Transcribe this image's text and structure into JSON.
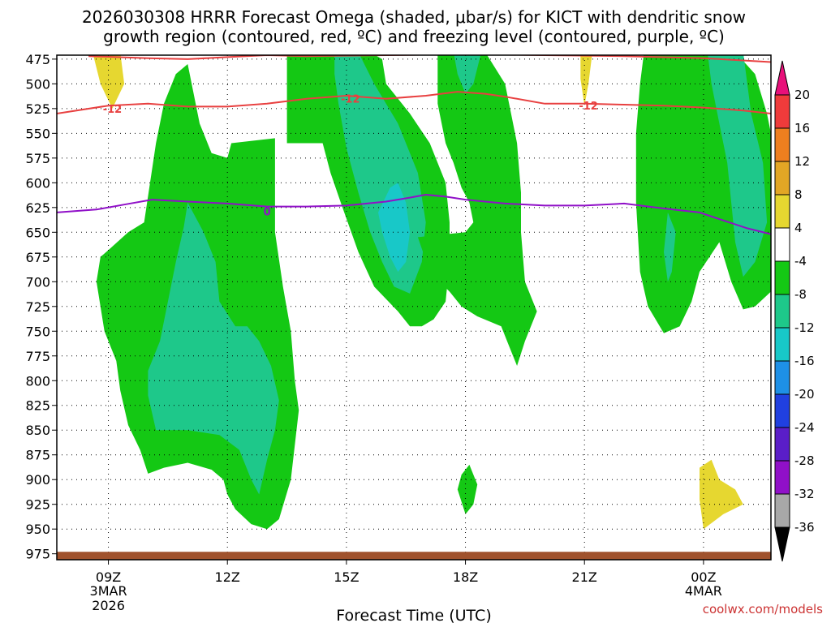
{
  "chart_data": {
    "type": "heatmap",
    "title_line1": "2026030308 HRRR Forecast Omega (shaded, μbar/s) for KICT with dendritic snow",
    "title_line2": "growth region (contoured, red, ºC) and freezing level (contoured, purple, ºC)",
    "xlabel": "Forecast Time (UTC)",
    "credit": "coolwx.com/models",
    "x_range_hours": [
      7.7,
      25.7
    ],
    "y_range_hpa": [
      471,
      981
    ],
    "y_axis_inverted": true,
    "yticks": [
      475,
      500,
      525,
      550,
      575,
      600,
      625,
      650,
      675,
      700,
      725,
      750,
      775,
      800,
      825,
      850,
      875,
      900,
      925,
      950,
      975
    ],
    "xticks": [
      {
        "hour": 9,
        "label": "09Z",
        "sub1": "3MAR",
        "sub2": "2026"
      },
      {
        "hour": 12,
        "label": "12Z",
        "sub1": "",
        "sub2": ""
      },
      {
        "hour": 15,
        "label": "15Z",
        "sub1": "",
        "sub2": ""
      },
      {
        "hour": 18,
        "label": "18Z",
        "sub1": "",
        "sub2": ""
      },
      {
        "hour": 21,
        "label": "21Z",
        "sub1": "",
        "sub2": ""
      },
      {
        "hour": 24,
        "label": "00Z",
        "sub1": "4MAR",
        "sub2": ""
      }
    ],
    "colorbar": {
      "levels": [
        20,
        16,
        12,
        8,
        4,
        -4,
        -8,
        -12,
        -16,
        -20,
        -24,
        -28,
        -32,
        -36
      ],
      "colors": [
        "#ef3b3b",
        "#ee7f1f",
        "#e2a625",
        "#e6d730",
        "#ffffff",
        "#14c814",
        "#1ec88a",
        "#18c8c8",
        "#1e90e6",
        "#2040e0",
        "#5a1ec8",
        "#9010c8",
        "#a8a8a8"
      ],
      "top_extend_color": "#e8107a",
      "bottom_extend_color": "#000000"
    },
    "shaded_regions": [
      {
        "class": "<-4",
        "color": "#14c814",
        "points": [
          [
            9.9,
            640
          ],
          [
            10.2,
            560
          ],
          [
            10.4,
            520
          ],
          [
            10.7,
            490
          ],
          [
            11.0,
            480
          ],
          [
            11.3,
            540
          ],
          [
            11.6,
            570
          ],
          [
            12.0,
            575
          ],
          [
            12.1,
            560
          ],
          [
            13.2,
            555
          ],
          [
            13.2,
            625
          ],
          [
            13.2,
            650
          ],
          [
            13.4,
            705
          ],
          [
            13.6,
            750
          ],
          [
            13.7,
            800
          ],
          [
            13.8,
            830
          ],
          [
            13.6,
            900
          ],
          [
            13.3,
            940
          ],
          [
            13.0,
            950
          ],
          [
            12.6,
            945
          ],
          [
            12.2,
            930
          ],
          [
            12.0,
            915
          ],
          [
            11.9,
            900
          ],
          [
            11.6,
            890
          ],
          [
            11.0,
            883
          ],
          [
            10.4,
            888
          ],
          [
            10.0,
            894
          ],
          [
            9.8,
            870
          ],
          [
            9.5,
            845
          ],
          [
            9.3,
            810
          ],
          [
            9.2,
            780
          ],
          [
            8.9,
            750
          ],
          [
            8.7,
            700
          ],
          [
            8.8,
            675
          ],
          [
            9.0,
            668
          ],
          [
            9.5,
            650
          ]
        ]
      },
      {
        "class": "<-8",
        "color": "#1ec88a",
        "points": [
          [
            11.0,
            620
          ],
          [
            11.4,
            650
          ],
          [
            11.7,
            680
          ],
          [
            11.8,
            720
          ],
          [
            12.2,
            745
          ],
          [
            12.5,
            745
          ],
          [
            12.8,
            760
          ],
          [
            13.1,
            785
          ],
          [
            13.3,
            820
          ],
          [
            13.2,
            850
          ],
          [
            13.0,
            880
          ],
          [
            12.8,
            915
          ],
          [
            12.6,
            900
          ],
          [
            12.3,
            870
          ],
          [
            11.8,
            855
          ],
          [
            11.0,
            850
          ],
          [
            10.2,
            850
          ],
          [
            10.0,
            815
          ],
          [
            10.0,
            790
          ],
          [
            10.3,
            760
          ],
          [
            10.5,
            720
          ],
          [
            10.7,
            680
          ],
          [
            10.9,
            645
          ]
        ]
      },
      {
        "class": "<-4",
        "color": "#14c814",
        "points": [
          [
            13.5,
            468
          ],
          [
            15.1,
            468
          ],
          [
            15.6,
            468
          ],
          [
            15.9,
            475
          ],
          [
            16.0,
            500
          ],
          [
            16.6,
            530
          ],
          [
            17.1,
            560
          ],
          [
            17.5,
            600
          ],
          [
            17.6,
            640
          ],
          [
            17.6,
            680
          ],
          [
            17.5,
            720
          ],
          [
            17.2,
            738
          ],
          [
            16.9,
            745
          ],
          [
            16.6,
            745
          ],
          [
            16.3,
            730
          ],
          [
            15.7,
            705
          ],
          [
            15.3,
            670
          ],
          [
            14.9,
            625
          ],
          [
            14.6,
            590
          ],
          [
            14.4,
            560
          ],
          [
            13.5,
            560
          ],
          [
            13.5,
            500
          ]
        ]
      },
      {
        "class": "<-8",
        "color": "#1ec88a",
        "points": [
          [
            14.7,
            468
          ],
          [
            15.3,
            468
          ],
          [
            15.7,
            500
          ],
          [
            16.3,
            540
          ],
          [
            16.8,
            590
          ],
          [
            17.0,
            640
          ],
          [
            16.9,
            680
          ],
          [
            16.6,
            712
          ],
          [
            16.2,
            705
          ],
          [
            15.9,
            680
          ],
          [
            15.6,
            650
          ],
          [
            15.3,
            610
          ],
          [
            15.0,
            565
          ],
          [
            14.8,
            520
          ],
          [
            14.7,
            490
          ]
        ]
      },
      {
        "class": "<-12",
        "color": "#18c8c8",
        "points": [
          [
            16.1,
            605
          ],
          [
            16.3,
            600
          ],
          [
            16.5,
            620
          ],
          [
            16.6,
            650
          ],
          [
            16.5,
            680
          ],
          [
            16.3,
            690
          ],
          [
            16.1,
            675
          ],
          [
            15.9,
            650
          ],
          [
            15.8,
            630
          ]
        ]
      },
      {
        "class": "<-4",
        "color": "#14c814",
        "points": [
          [
            17.3,
            468
          ],
          [
            18.5,
            468
          ],
          [
            19.0,
            500
          ],
          [
            19.3,
            560
          ],
          [
            19.4,
            610
          ],
          [
            19.4,
            650
          ],
          [
            19.5,
            700
          ],
          [
            19.8,
            730
          ],
          [
            19.5,
            760
          ],
          [
            19.3,
            785
          ],
          [
            19.1,
            765
          ],
          [
            18.9,
            745
          ],
          [
            18.3,
            735
          ],
          [
            17.9,
            725
          ],
          [
            17.6,
            710
          ],
          [
            17.1,
            690
          ],
          [
            16.8,
            655
          ],
          [
            18.0,
            650
          ],
          [
            18.2,
            640
          ],
          [
            18.1,
            620
          ],
          [
            17.9,
            605
          ],
          [
            17.7,
            580
          ],
          [
            17.5,
            560
          ],
          [
            17.3,
            520
          ],
          [
            17.3,
            490
          ]
        ]
      },
      {
        "class": "<-8",
        "color": "#1ec88a",
        "points": [
          [
            17.7,
            468
          ],
          [
            18.4,
            468
          ],
          [
            18.2,
            500
          ],
          [
            18.0,
            510
          ],
          [
            17.8,
            490
          ]
        ]
      },
      {
        "class": "<-4",
        "color": "#14c814",
        "points": [
          [
            17.9,
            895
          ],
          [
            18.1,
            885
          ],
          [
            18.3,
            905
          ],
          [
            18.2,
            925
          ],
          [
            18.0,
            935
          ],
          [
            17.8,
            910
          ]
        ]
      },
      {
        "class": "<-4",
        "color": "#14c814",
        "points": [
          [
            22.5,
            468
          ],
          [
            24.5,
            468
          ],
          [
            24.8,
            468
          ],
          [
            25.3,
            490
          ],
          [
            25.6,
            530
          ],
          [
            25.8,
            570
          ],
          [
            25.9,
            620
          ],
          [
            25.9,
            680
          ],
          [
            25.7,
            710
          ],
          [
            25.3,
            725
          ],
          [
            25.0,
            728
          ],
          [
            24.7,
            700
          ],
          [
            24.4,
            660
          ],
          [
            23.9,
            690
          ],
          [
            23.7,
            720
          ],
          [
            23.4,
            745
          ],
          [
            23.0,
            752
          ],
          [
            22.6,
            725
          ],
          [
            22.4,
            690
          ],
          [
            22.3,
            620
          ],
          [
            22.3,
            550
          ],
          [
            22.4,
            500
          ]
        ]
      },
      {
        "class": "<-8",
        "color": "#1ec88a",
        "points": [
          [
            24.1,
            468
          ],
          [
            25.0,
            468
          ],
          [
            25.2,
            530
          ],
          [
            25.5,
            580
          ],
          [
            25.6,
            640
          ],
          [
            25.3,
            680
          ],
          [
            25.0,
            695
          ],
          [
            24.8,
            660
          ],
          [
            24.7,
            620
          ],
          [
            24.6,
            580
          ],
          [
            24.4,
            540
          ],
          [
            24.2,
            500
          ]
        ]
      },
      {
        "class": "<-8",
        "color": "#1ec88a",
        "points": [
          [
            23.1,
            630
          ],
          [
            23.3,
            650
          ],
          [
            23.2,
            690
          ],
          [
            23.1,
            700
          ],
          [
            23.0,
            670
          ]
        ]
      },
      {
        "class": ">4",
        "color": "#e6d730",
        "points": [
          [
            8.6,
            468
          ],
          [
            9.3,
            468
          ],
          [
            9.4,
            500
          ],
          [
            9.1,
            525
          ],
          [
            8.8,
            500
          ]
        ]
      },
      {
        "class": ">4",
        "color": "#e6d730",
        "points": [
          [
            20.9,
            468
          ],
          [
            21.2,
            468
          ],
          [
            21.1,
            500
          ],
          [
            21.0,
            522
          ],
          [
            20.9,
            495
          ]
        ]
      },
      {
        "class": ">4",
        "color": "#e6d730",
        "points": [
          [
            23.9,
            888
          ],
          [
            24.2,
            880
          ],
          [
            24.4,
            900
          ],
          [
            24.8,
            910
          ],
          [
            25.0,
            925
          ],
          [
            24.5,
            935
          ],
          [
            24.0,
            950
          ],
          [
            23.9,
            920
          ]
        ]
      }
    ],
    "contours": [
      {
        "name": "dendritic -12C (lower)",
        "color": "#e84040",
        "label": "-12",
        "label_positions": [
          [
            9.1,
            525
          ],
          [
            15.1,
            515
          ],
          [
            21.1,
            522
          ]
        ],
        "points": [
          [
            7.7,
            530
          ],
          [
            9.0,
            522
          ],
          [
            10.0,
            520
          ],
          [
            11.0,
            523
          ],
          [
            12.0,
            523
          ],
          [
            13.0,
            520
          ],
          [
            14.0,
            515
          ],
          [
            15.0,
            512
          ],
          [
            16.0,
            515
          ],
          [
            17.0,
            512
          ],
          [
            17.8,
            508
          ],
          [
            18.5,
            510
          ],
          [
            19.0,
            513
          ],
          [
            20.0,
            520
          ],
          [
            21.0,
            520
          ],
          [
            22.0,
            521
          ],
          [
            23.0,
            522
          ],
          [
            24.0,
            524
          ],
          [
            25.0,
            527
          ],
          [
            25.7,
            530
          ]
        ]
      },
      {
        "name": "dendritic -12C (upper)",
        "color": "#e84040",
        "label": "",
        "label_positions": [],
        "points": [
          [
            8.5,
            472
          ],
          [
            10.0,
            474
          ],
          [
            11.0,
            475
          ],
          [
            12.0,
            473
          ],
          [
            13.0,
            471
          ],
          [
            14.0,
            472
          ],
          [
            16.0,
            471
          ],
          [
            18.0,
            470
          ],
          [
            20.0,
            471
          ],
          [
            22.0,
            472
          ],
          [
            24.0,
            474
          ],
          [
            25.7,
            478
          ]
        ]
      },
      {
        "name": "freezing level 0C",
        "color": "#9010c8",
        "label": "0",
        "label_positions": [
          [
            13.0,
            629
          ]
        ],
        "points": [
          [
            7.7,
            630
          ],
          [
            8.7,
            627
          ],
          [
            9.4,
            622
          ],
          [
            10.1,
            617
          ],
          [
            11.0,
            619
          ],
          [
            12.0,
            621
          ],
          [
            13.0,
            624
          ],
          [
            14.0,
            624
          ],
          [
            15.0,
            623
          ],
          [
            16.0,
            619
          ],
          [
            16.6,
            615
          ],
          [
            17.0,
            612
          ],
          [
            17.5,
            614
          ],
          [
            18.0,
            617
          ],
          [
            19.0,
            621
          ],
          [
            20.0,
            623
          ],
          [
            21.0,
            623
          ],
          [
            22.0,
            621
          ],
          [
            23.0,
            626
          ],
          [
            23.9,
            630
          ],
          [
            24.5,
            638
          ],
          [
            25.1,
            646
          ],
          [
            25.7,
            652
          ]
        ]
      }
    ],
    "ground": {
      "color": "#a0522d",
      "top_hpa": 973
    }
  }
}
